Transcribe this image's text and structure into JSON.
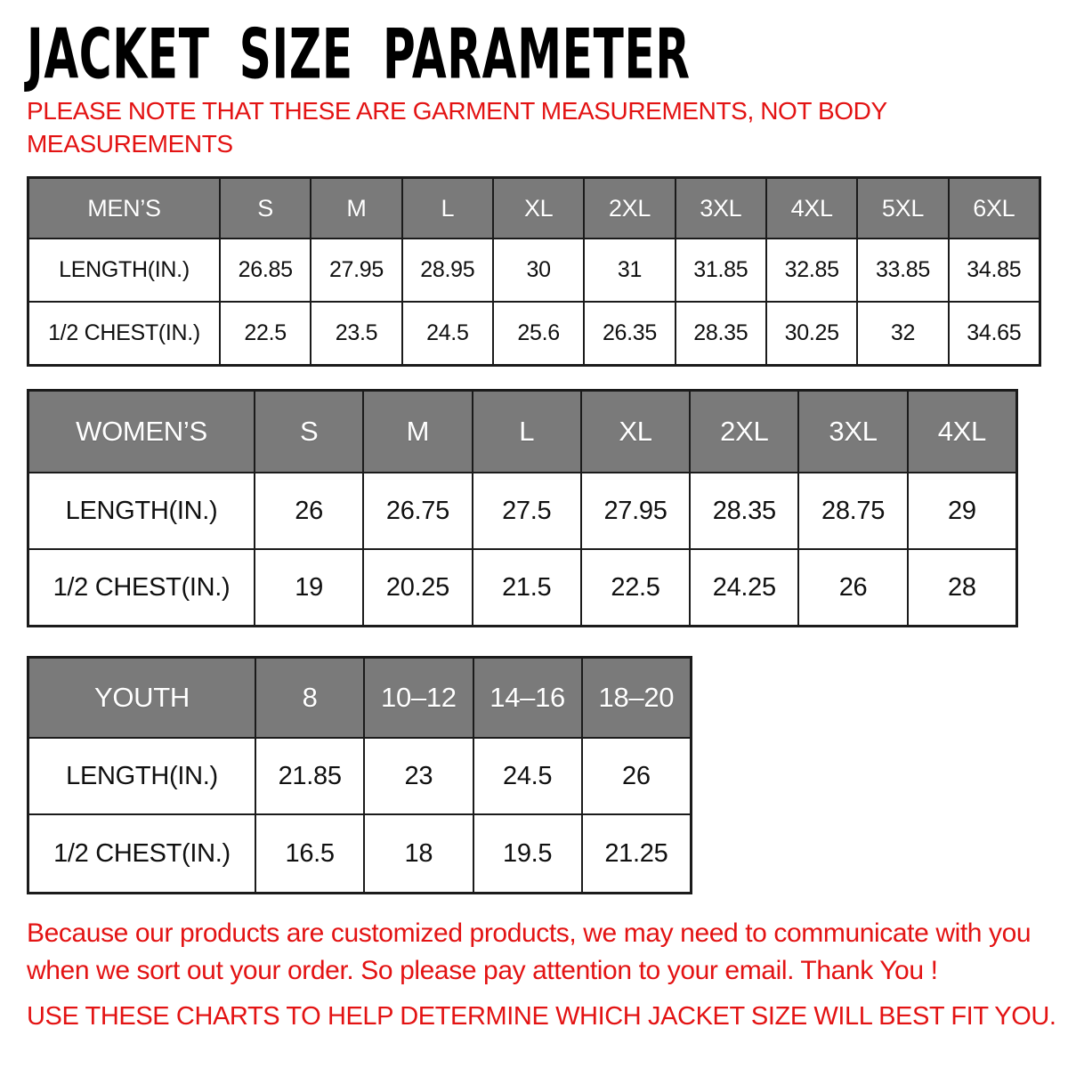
{
  "title": "JACKET SIZE PARAMETER",
  "note_lines": [
    "PLEASE NOTE THAT THESE ARE GARMENT MEASUREMENTS, NOT BODY",
    "MEASUREMENTS"
  ],
  "colors": {
    "accent_red": "#e31313",
    "header_gray": "#7a7a7a",
    "border_dark": "#1b1b1b"
  },
  "tables": [
    {
      "name": "MEN’S",
      "sizes": [
        "S",
        "M",
        "L",
        "XL",
        "2XL",
        "3XL",
        "4XL",
        "5XL",
        "6XL"
      ],
      "rows": [
        {
          "label": "LENGTH(IN.)",
          "values": [
            "26.85",
            "27.95",
            "28.95",
            "30",
            "31",
            "31.85",
            "32.85",
            "33.85",
            "34.85"
          ]
        },
        {
          "label": "1/2 CHEST(IN.)",
          "values": [
            "22.5",
            "23.5",
            "24.5",
            "25.6",
            "26.35",
            "28.35",
            "30.25",
            "32",
            "34.65"
          ]
        }
      ]
    },
    {
      "name": "WOMEN’S",
      "sizes": [
        "S",
        "M",
        "L",
        "XL",
        "2XL",
        "3XL",
        "4XL"
      ],
      "rows": [
        {
          "label": "LENGTH(IN.)",
          "values": [
            "26",
            "26.75",
            "27.5",
            "27.95",
            "28.35",
            "28.75",
            "29"
          ]
        },
        {
          "label": "1/2 CHEST(IN.)",
          "values": [
            "19",
            "20.25",
            "21.5",
            "22.5",
            "24.25",
            "26",
            "28"
          ]
        }
      ]
    },
    {
      "name": "YOUTH",
      "sizes": [
        "8",
        "10–12",
        "14–16",
        "18–20"
      ],
      "rows": [
        {
          "label": "LENGTH(IN.)",
          "values": [
            "21.85",
            "23",
            "24.5",
            "26"
          ]
        },
        {
          "label": "1/2 CHEST(IN.)",
          "values": [
            "16.5",
            "18",
            "19.5",
            "21.25"
          ]
        }
      ]
    }
  ],
  "footer": {
    "paragraph_lines": [
      "Because our products are customized products, we may need to communicate with you",
      "when we sort out your order. So please pay attention to your email. Thank You !"
    ],
    "caps_line": "USE THESE CHARTS TO HELP DETERMINE WHICH JACKET SIZE WILL BEST FIT YOU."
  }
}
